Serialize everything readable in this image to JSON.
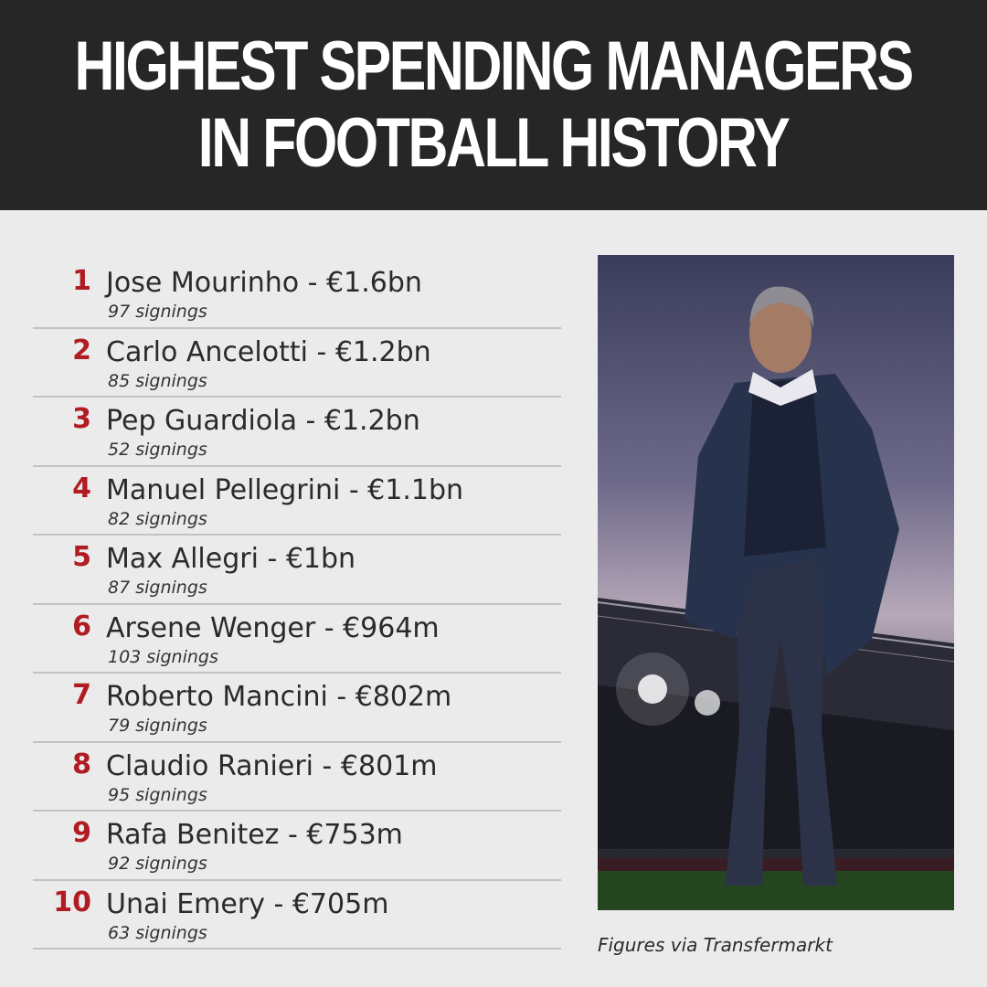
{
  "header": {
    "title_line1": "HIGHEST SPENDING MANAGERS",
    "title_line2": "IN FOOTBALL HISTORY"
  },
  "managers": [
    {
      "rank": "1",
      "name": "Jose Mourinho - €1.6bn",
      "signings": "97 signings"
    },
    {
      "rank": "2",
      "name": "Carlo Ancelotti - €1.2bn",
      "signings": "85 signings"
    },
    {
      "rank": "3",
      "name": "Pep Guardiola - €1.2bn",
      "signings": "52 signings"
    },
    {
      "rank": "4",
      "name": "Manuel Pellegrini - €1.1bn",
      "signings": "82 signings"
    },
    {
      "rank": "5",
      "name": "Max Allegri - €1bn",
      "signings": "87 signings"
    },
    {
      "rank": "6",
      "name": "Arsene Wenger - €964m",
      "signings": "103 signings"
    },
    {
      "rank": "7",
      "name": "Roberto Mancini - €802m",
      "signings": "79 signings"
    },
    {
      "rank": "8",
      "name": "Claudio Ranieri - €801m",
      "signings": "95 signings"
    },
    {
      "rank": "9",
      "name": "Rafa Benitez - €753m",
      "signings": "92 signings"
    },
    {
      "rank": "10",
      "name": "Unai Emery - €705m",
      "signings": "63 signings"
    }
  ],
  "source_note": "Figures via Transfermarkt",
  "colors": {
    "header_bg": "#262626",
    "page_bg": "#ebebeb",
    "rank_red": "#b01c22"
  }
}
